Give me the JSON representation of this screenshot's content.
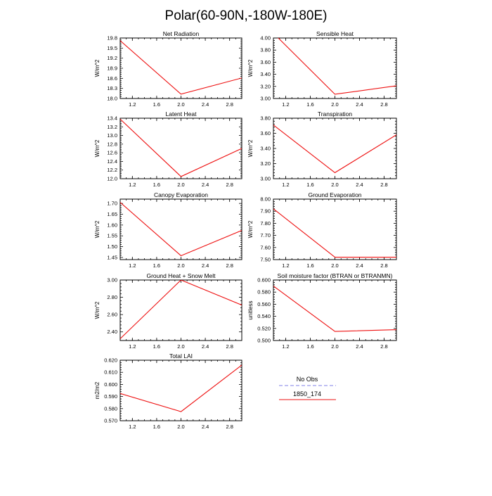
{
  "figure_title": "Polar(60-90N,-180W-180E)",
  "colors": {
    "model": "#ee1111",
    "obs": "#9b9bec"
  },
  "legend": {
    "obs_label": "No Obs",
    "model_label": "1850_174"
  },
  "chart_data": [
    {
      "type": "line",
      "title": "Net Radiation",
      "ylabel": "W/m^2",
      "x": [
        1,
        2,
        3
      ],
      "xlim": [
        1,
        3
      ],
      "xticks": [
        1.2,
        1.6,
        2.0,
        2.4,
        2.8
      ],
      "xtick_labels": [
        "1.2",
        "1.6",
        "2.0",
        "2.4",
        "2.8"
      ],
      "ylim": [
        18.0,
        19.8
      ],
      "yticks": [
        18.0,
        18.3,
        18.6,
        18.9,
        19.2,
        19.5,
        19.8
      ],
      "ytick_labels": [
        "18.0",
        "18.3",
        "18.6",
        "18.9",
        "19.2",
        "19.5",
        "19.8"
      ],
      "series": [
        {
          "name": "1850_174",
          "values": [
            19.72,
            18.13,
            18.61
          ]
        }
      ]
    },
    {
      "type": "line",
      "title": "Sensible Heat",
      "ylabel": "W/m^2",
      "x": [
        1,
        2,
        3
      ],
      "xlim": [
        1,
        3
      ],
      "xticks": [
        1.2,
        1.6,
        2.0,
        2.4,
        2.8
      ],
      "xtick_labels": [
        "1.2",
        "1.6",
        "2.0",
        "2.4",
        "2.8"
      ],
      "ylim": [
        3.0,
        4.0
      ],
      "yticks": [
        3.0,
        3.2,
        3.4,
        3.6,
        3.8,
        4.0
      ],
      "ytick_labels": [
        "3.00",
        "3.20",
        "3.40",
        "3.60",
        "3.80",
        "4.00"
      ],
      "series": [
        {
          "name": "1850_174",
          "values": [
            4.08,
            3.07,
            3.21
          ]
        }
      ]
    },
    {
      "type": "line",
      "title": "Latent Heat",
      "ylabel": "W/m^2",
      "x": [
        1,
        2,
        3
      ],
      "xlim": [
        1,
        3
      ],
      "xticks": [
        1.2,
        1.6,
        2.0,
        2.4,
        2.8
      ],
      "xtick_labels": [
        "1.2",
        "1.6",
        "2.0",
        "2.4",
        "2.8"
      ],
      "ylim": [
        12.0,
        13.4
      ],
      "yticks": [
        12.0,
        12.2,
        12.4,
        12.6,
        12.8,
        13.0,
        13.2,
        13.4
      ],
      "ytick_labels": [
        "12.0",
        "12.2",
        "12.4",
        "12.6",
        "12.8",
        "13.0",
        "13.2",
        "13.4"
      ],
      "series": [
        {
          "name": "1850_174",
          "values": [
            13.38,
            12.05,
            12.7
          ]
        }
      ]
    },
    {
      "type": "line",
      "title": "Transpiration",
      "ylabel": "W/m^2",
      "x": [
        1,
        2,
        3
      ],
      "xlim": [
        1,
        3
      ],
      "xticks": [
        1.2,
        1.6,
        2.0,
        2.4,
        2.8
      ],
      "xtick_labels": [
        "1.2",
        "1.6",
        "2.0",
        "2.4",
        "2.8"
      ],
      "ylim": [
        3.0,
        3.8
      ],
      "yticks": [
        3.0,
        3.2,
        3.4,
        3.6,
        3.8
      ],
      "ytick_labels": [
        "3.00",
        "3.20",
        "3.40",
        "3.60",
        "3.80"
      ],
      "series": [
        {
          "name": "1850_174",
          "values": [
            3.71,
            3.08,
            3.58
          ]
        }
      ]
    },
    {
      "type": "line",
      "title": "Canopy Evaporation",
      "ylabel": "W/m^2",
      "x": [
        1,
        2,
        3
      ],
      "xlim": [
        1,
        3
      ],
      "xticks": [
        1.2,
        1.6,
        2.0,
        2.4,
        2.8
      ],
      "xtick_labels": [
        "1.2",
        "1.6",
        "2.0",
        "2.4",
        "2.8"
      ],
      "ylim": [
        1.44,
        1.72
      ],
      "yticks": [
        1.45,
        1.5,
        1.55,
        1.6,
        1.65,
        1.7
      ],
      "ytick_labels": [
        "1.45",
        "1.50",
        "1.55",
        "1.60",
        "1.65",
        "1.70"
      ],
      "series": [
        {
          "name": "1850_174",
          "values": [
            1.705,
            1.458,
            1.575
          ]
        }
      ]
    },
    {
      "type": "line",
      "title": "Ground Evaporation",
      "ylabel": "W/m^2",
      "x": [
        1,
        2,
        3
      ],
      "xlim": [
        1,
        3
      ],
      "xticks": [
        1.2,
        1.6,
        2.0,
        2.4,
        2.8
      ],
      "xtick_labels": [
        "1.2",
        "1.6",
        "2.0",
        "2.4",
        "2.8"
      ],
      "ylim": [
        7.5,
        8.0
      ],
      "yticks": [
        7.5,
        7.6,
        7.7,
        7.8,
        7.9,
        8.0
      ],
      "ytick_labels": [
        "7.50",
        "7.60",
        "7.70",
        "7.80",
        "7.90",
        "8.00"
      ],
      "series": [
        {
          "name": "1850_174",
          "values": [
            7.92,
            7.52,
            7.52
          ]
        }
      ]
    },
    {
      "type": "line",
      "title": "Ground Heat + Snow Melt",
      "ylabel": "W/m^2",
      "x": [
        1,
        2,
        3
      ],
      "xlim": [
        1,
        3
      ],
      "xticks": [
        1.2,
        1.6,
        2.0,
        2.4,
        2.8
      ],
      "xtick_labels": [
        "1.2",
        "1.6",
        "2.0",
        "2.4",
        "2.8"
      ],
      "ylim": [
        2.3,
        3.0
      ],
      "yticks": [
        2.4,
        2.6,
        2.8,
        3.0
      ],
      "ytick_labels": [
        "2.40",
        "2.60",
        "2.80",
        "3.00"
      ],
      "series": [
        {
          "name": "1850_174",
          "values": [
            2.32,
            3.0,
            2.71
          ]
        }
      ]
    },
    {
      "type": "line",
      "title": "Soil moisture factor (BTRAN or BTRANMN)",
      "ylabel": "unitless",
      "x": [
        1,
        2,
        3
      ],
      "xlim": [
        1,
        3
      ],
      "xticks": [
        1.2,
        1.6,
        2.0,
        2.4,
        2.8
      ],
      "xtick_labels": [
        "1.2",
        "1.6",
        "2.0",
        "2.4",
        "2.8"
      ],
      "ylim": [
        0.5,
        0.6
      ],
      "yticks": [
        0.5,
        0.52,
        0.54,
        0.56,
        0.58,
        0.6
      ],
      "ytick_labels": [
        "0.500",
        "0.520",
        "0.540",
        "0.560",
        "0.580",
        "0.600"
      ],
      "series": [
        {
          "name": "1850_174",
          "values": [
            0.59,
            0.515,
            0.518
          ]
        }
      ]
    },
    {
      "type": "line",
      "title": "Total LAI",
      "ylabel": "m2/m2",
      "x": [
        1,
        2,
        3
      ],
      "xlim": [
        1,
        3
      ],
      "xticks": [
        1.2,
        1.6,
        2.0,
        2.4,
        2.8
      ],
      "xtick_labels": [
        "1.2",
        "1.6",
        "2.0",
        "2.4",
        "2.8"
      ],
      "ylim": [
        0.57,
        0.62
      ],
      "yticks": [
        0.57,
        0.58,
        0.59,
        0.6,
        0.61,
        0.62
      ],
      "ytick_labels": [
        "0.570",
        "0.580",
        "0.590",
        "0.600",
        "0.610",
        "0.620"
      ],
      "series": [
        {
          "name": "1850_174",
          "values": [
            0.5925,
            0.5775,
            0.616
          ]
        }
      ]
    }
  ]
}
